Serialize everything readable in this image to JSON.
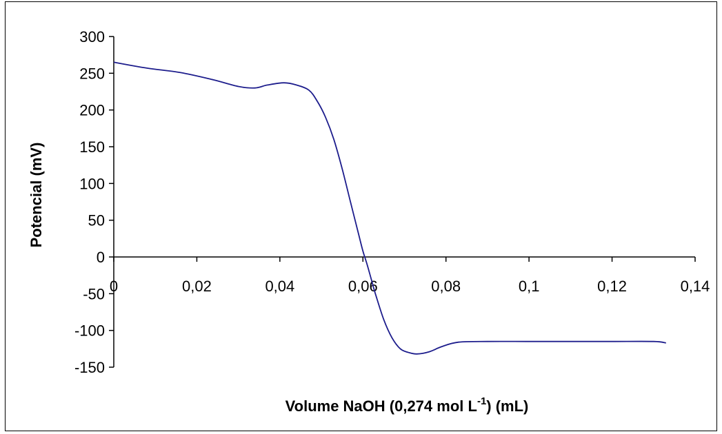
{
  "chart_data": {
    "type": "line",
    "title": "",
    "xlabel": "Volume NaOH (0,274 mol L",
    "xlabel_sup": "-1",
    "xlabel_tail": ") (mL)",
    "ylabel": "Potencial (mV)",
    "xlim": [
      0,
      0.14
    ],
    "ylim": [
      -150,
      300
    ],
    "x_ticks": [
      0,
      0.02,
      0.04,
      0.06,
      0.08,
      0.1,
      0.12,
      0.14
    ],
    "x_tick_labels": [
      "0",
      "0,02",
      "0,04",
      "0,06",
      "0,08",
      "0,1",
      "0,12",
      "0,14"
    ],
    "y_ticks": [
      -150,
      -100,
      -50,
      0,
      50,
      100,
      150,
      200,
      250,
      300
    ],
    "y_tick_labels": [
      "-150",
      "-100",
      "-50",
      "0",
      "50",
      "100",
      "150",
      "200",
      "250",
      "300"
    ],
    "grid": false,
    "legend": "none",
    "line_color": "#1c1c8c",
    "series": [
      {
        "x": [
          0,
          0.008,
          0.016,
          0.024,
          0.03,
          0.034,
          0.037,
          0.041,
          0.044,
          0.047,
          0.049,
          0.051,
          0.053,
          0.055,
          0.057,
          0.059,
          0.06,
          0.061,
          0.062,
          0.063,
          0.065,
          0.067,
          0.069,
          0.071,
          0.073,
          0.076,
          0.079,
          0.083,
          0.09,
          0.1,
          0.11,
          0.12,
          0.13,
          0.133
        ],
        "y": [
          265,
          257,
          251,
          241,
          232,
          230,
          234,
          237,
          234,
          227,
          212,
          190,
          160,
          120,
          75,
          30,
          8,
          -10,
          -30,
          -50,
          -85,
          -110,
          -125,
          -130,
          -132,
          -129,
          -122,
          -116,
          -115,
          -115,
          -115,
          -115,
          -115,
          -117
        ]
      }
    ]
  }
}
